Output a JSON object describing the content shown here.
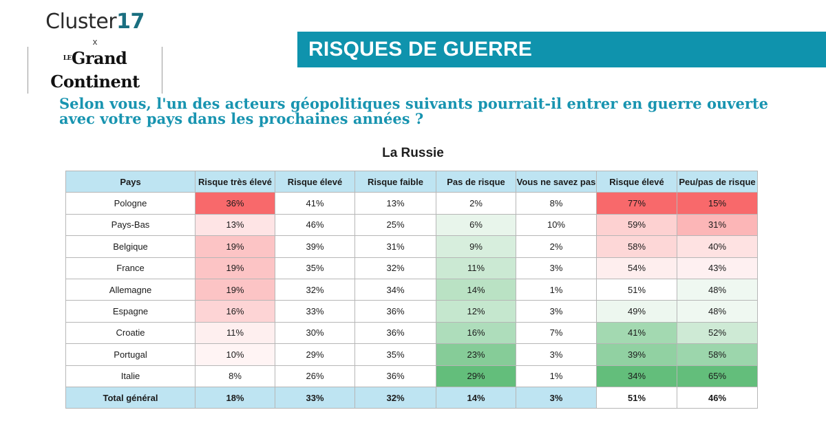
{
  "branding": {
    "cluster_name": "Cluster",
    "cluster_number": "17",
    "cross": "x",
    "partner_prefix": "LE",
    "partner_name": "Grand Continent"
  },
  "banner": {
    "title": "RISQUES DE GUERRE",
    "color": "#0f93ad"
  },
  "question": "Selon vous, l'un des acteurs géopolitiques suivants pourrait-il entrer en guerre ouverte avec votre pays dans les prochaines années ?",
  "chart_data": {
    "type": "table",
    "title": "La Russie",
    "columns": [
      "Pays",
      "Risque très élevé",
      "Risque élevé",
      "Risque faible",
      "Pas de risque",
      "Vous ne savez pas",
      "Risque élevé",
      "Peu/pas de risque"
    ],
    "rows": [
      {
        "country": "Pologne",
        "values": [
          "36%",
          "41%",
          "13%",
          "2%",
          "8%",
          "77%",
          "15%"
        ]
      },
      {
        "country": "Pays-Bas",
        "values": [
          "13%",
          "46%",
          "25%",
          "6%",
          "10%",
          "59%",
          "31%"
        ]
      },
      {
        "country": "Belgique",
        "values": [
          "19%",
          "39%",
          "31%",
          "9%",
          "2%",
          "58%",
          "40%"
        ]
      },
      {
        "country": "France",
        "values": [
          "19%",
          "35%",
          "32%",
          "11%",
          "3%",
          "54%",
          "43%"
        ]
      },
      {
        "country": "Allemagne",
        "values": [
          "19%",
          "32%",
          "34%",
          "14%",
          "1%",
          "51%",
          "48%"
        ]
      },
      {
        "country": "Espagne",
        "values": [
          "16%",
          "33%",
          "36%",
          "12%",
          "3%",
          "49%",
          "48%"
        ]
      },
      {
        "country": "Croatie",
        "values": [
          "11%",
          "30%",
          "36%",
          "16%",
          "7%",
          "41%",
          "52%"
        ]
      },
      {
        "country": "Portugal",
        "values": [
          "10%",
          "29%",
          "35%",
          "23%",
          "3%",
          "39%",
          "58%"
        ]
      },
      {
        "country": "Italie",
        "values": [
          "8%",
          "26%",
          "36%",
          "29%",
          "1%",
          "34%",
          "65%"
        ]
      }
    ],
    "total": {
      "label": "Total général",
      "values": [
        "18%",
        "33%",
        "32%",
        "14%",
        "3%",
        "51%",
        "46%"
      ]
    },
    "header_color": "#bee4f2",
    "shading": {
      "risk_scale": [
        "#ffffff",
        "#f8696b"
      ],
      "safety_scale": [
        "#ffffff",
        "#63be7b"
      ],
      "columns": {
        "0": {
          "type": "red",
          "min": 8,
          "max": 36
        },
        "3": {
          "type": "green",
          "min": 2,
          "max": 29
        },
        "5": {
          "type": "diverging",
          "low": 34,
          "mid": 51,
          "high": 77,
          "low_color": "#63be7b",
          "high_color": "#f8696b"
        },
        "6": {
          "type": "diverging",
          "low": 15,
          "mid": 46,
          "high": 65,
          "low_color": "#f8696b",
          "high_color": "#63be7b"
        }
      }
    }
  }
}
